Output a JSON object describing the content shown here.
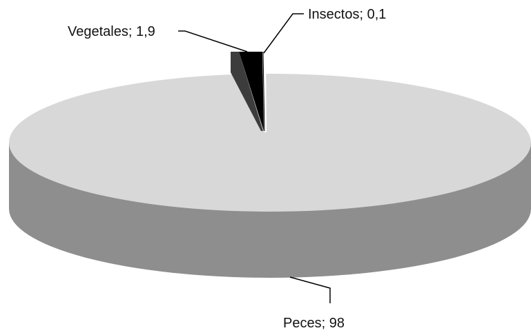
{
  "chart_data": {
    "type": "pie",
    "style": "3d",
    "title": "",
    "slices": [
      {
        "label": "Peces; 98",
        "name": "Peces",
        "value": 98,
        "color": "#d8d8d8",
        "side_color": "#8e8e8e",
        "exploded": false
      },
      {
        "label": "Vegetales; 1,9",
        "name": "Vegetales",
        "value": 1.9,
        "color": "#000000",
        "side_color": "#3c3c3c",
        "exploded": true
      },
      {
        "label": "Insectos; 0,1",
        "name": "Insectos",
        "value": 0.1,
        "color": "#ffffff",
        "side_color": "#ffffff",
        "exploded": true
      }
    ],
    "legend": "none",
    "data_labels": "outside with leader lines"
  }
}
